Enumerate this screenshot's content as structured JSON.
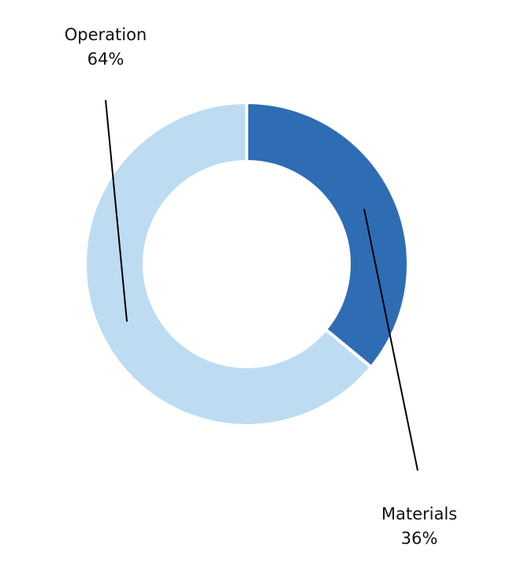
{
  "chart_data": {
    "type": "donut",
    "categories": [
      "Materials",
      "Operation"
    ],
    "values": [
      36,
      64
    ],
    "value_labels": [
      "36%",
      "64%"
    ],
    "colors": [
      "#2e6db4",
      "#bddcf2"
    ]
  }
}
